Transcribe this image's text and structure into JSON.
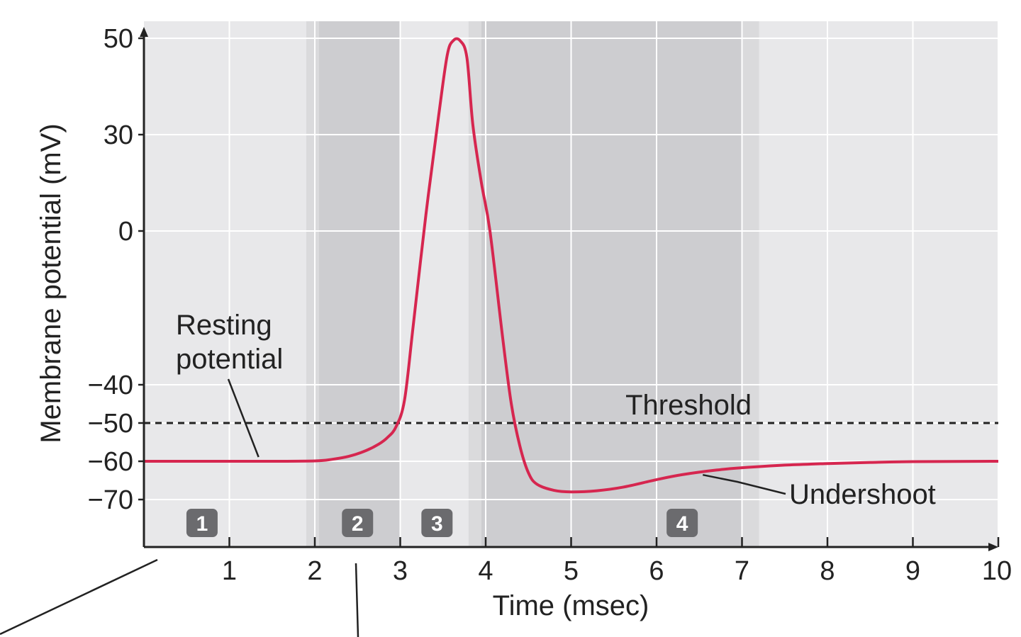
{
  "chart_data": {
    "type": "line",
    "title": "",
    "xlabel": "Time (msec)",
    "ylabel": "Membrane potential (mV)",
    "xlim": [
      0,
      10
    ],
    "ylim": [
      -80,
      50
    ],
    "x_ticks": [
      1,
      2,
      3,
      4,
      5,
      6,
      7,
      8,
      9,
      10
    ],
    "y_ticks": [
      50,
      30,
      0,
      -40,
      -50,
      -60,
      -70
    ],
    "grid": true,
    "colors": {
      "line": "#d6264f",
      "background": "#e8e8ea",
      "band_dark": "#cdcdd0",
      "band_mid": "#dadadc",
      "grid": "#ffffff",
      "badge": "#6b6b6e",
      "axis": "#222222"
    },
    "series": [
      {
        "name": "",
        "x": [
          0,
          0.5,
          1,
          1.5,
          2,
          2.2,
          2.4,
          2.6,
          2.75,
          2.85,
          2.95,
          3.05,
          3.15,
          3.3,
          3.45,
          3.55,
          3.62,
          3.7,
          3.78,
          3.85,
          3.95,
          4.05,
          4.2,
          4.3,
          4.4,
          4.5,
          4.6,
          4.8,
          5.0,
          5.3,
          5.6,
          6.0,
          6.3,
          6.7,
          7.0,
          7.5,
          8.0,
          8.5,
          9.0,
          10.0
        ],
        "y": [
          -60,
          -60,
          -60,
          -60,
          -59.9,
          -59.5,
          -58.7,
          -57.2,
          -55.5,
          -53.8,
          -51,
          -44,
          -25,
          5,
          34,
          46.5,
          49.5,
          49.5,
          46,
          32,
          15,
          0,
          -28,
          -45,
          -56,
          -63,
          -66,
          -67.6,
          -68,
          -67.7,
          -66.8,
          -64.8,
          -63.5,
          -62.3,
          -61.7,
          -61,
          -60.6,
          -60.3,
          -60.1,
          -60
        ]
      }
    ],
    "threshold": {
      "value": -50,
      "label": "Threshold"
    },
    "annotations": [
      {
        "text_lines": [
          "Resting",
          "potential"
        ],
        "points_to": {
          "x": 1.3,
          "y": -60
        }
      },
      {
        "text_lines": [
          "Undershoot"
        ],
        "points_to": {
          "x": 6.5,
          "y": -63
        }
      }
    ],
    "phase_bands": [
      {
        "x_start": 1.9,
        "x_end": 2.05,
        "shade": "mid"
      },
      {
        "x_start": 2.05,
        "x_end": 3.0,
        "shade": "dark"
      },
      {
        "x_start": 3.8,
        "x_end": 3.95,
        "shade": "mid"
      },
      {
        "x_start": 3.95,
        "x_end": 7.0,
        "shade": "dark"
      },
      {
        "x_start": 7.0,
        "x_end": 7.2,
        "shade": "mid"
      }
    ],
    "phase_badges": [
      {
        "label": "1",
        "x": 0.68
      },
      {
        "label": "2",
        "x": 2.5
      },
      {
        "label": "3",
        "x": 3.43
      },
      {
        "label": "4",
        "x": 6.3
      }
    ]
  }
}
